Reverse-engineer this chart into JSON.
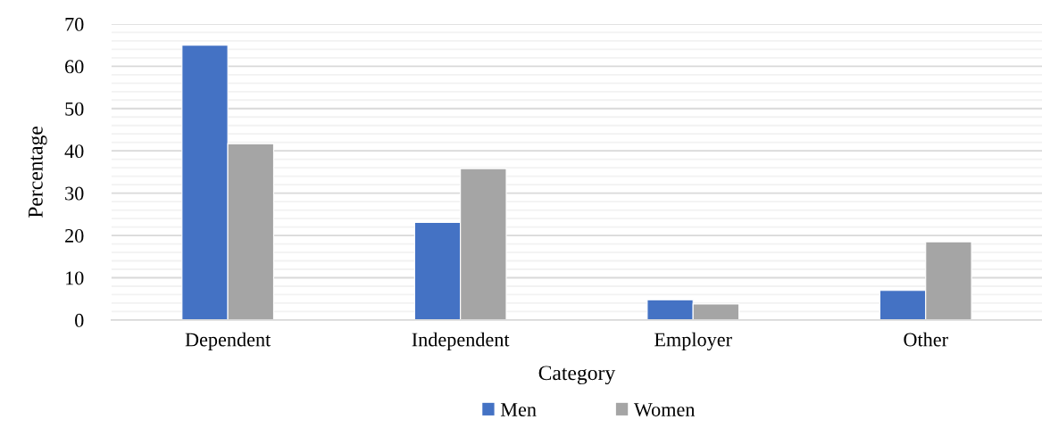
{
  "chart_data": {
    "type": "bar",
    "categories": [
      "Dependent",
      "Independent",
      "Employer",
      "Other"
    ],
    "series": [
      {
        "name": "Men",
        "color": "#4472c4",
        "values": [
          65,
          23.1,
          4.8,
          7.0
        ]
      },
      {
        "name": "Women",
        "color": "#a5a5a5",
        "values": [
          41.7,
          35.8,
          3.8,
          18.5
        ]
      }
    ],
    "xlabel": "Category",
    "ylabel": "Percentage",
    "ylim": [
      0,
      70
    ],
    "yticks": [
      0,
      {
        "value": 2,
        "label": null
      },
      {
        "value": 4,
        "label": null
      },
      {
        "value": 6,
        "label": null
      },
      {
        "value": 8,
        "label": null
      },
      10,
      {
        "value": 12,
        "label": null
      },
      {
        "value": 14,
        "label": null
      },
      {
        "value": 16,
        "label": null
      },
      {
        "value": 18,
        "label": null
      },
      20,
      {
        "value": 22,
        "label": null
      },
      {
        "value": 24,
        "label": null
      },
      {
        "value": 26,
        "label": null
      },
      {
        "value": 28,
        "label": null
      },
      30,
      {
        "value": 32,
        "label": null
      },
      {
        "value": 34,
        "label": null
      },
      {
        "value": 36,
        "label": null
      },
      {
        "value": 38,
        "label": null
      },
      40,
      {
        "value": 42,
        "label": null
      },
      {
        "value": 44,
        "label": null
      },
      {
        "value": 46,
        "label": null
      },
      {
        "value": 48,
        "label": null
      },
      50,
      {
        "value": 52,
        "label": null
      },
      {
        "value": 54,
        "label": null
      },
      {
        "value": 56,
        "label": null
      },
      {
        "value": 58,
        "label": null
      },
      60,
      {
        "value": 62,
        "label": null
      },
      {
        "value": 64,
        "label": null
      },
      {
        "value": 66,
        "label": null
      },
      {
        "value": 68,
        "label": null
      },
      70
    ],
    "grid": "y",
    "legend": "bottom"
  }
}
